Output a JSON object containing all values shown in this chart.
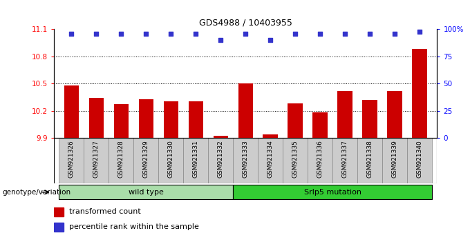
{
  "title": "GDS4988 / 10403955",
  "samples": [
    "GSM921326",
    "GSM921327",
    "GSM921328",
    "GSM921329",
    "GSM921330",
    "GSM921331",
    "GSM921332",
    "GSM921333",
    "GSM921334",
    "GSM921335",
    "GSM921336",
    "GSM921337",
    "GSM921338",
    "GSM921339",
    "GSM921340"
  ],
  "bar_values": [
    10.48,
    10.34,
    10.27,
    10.33,
    10.3,
    10.3,
    9.92,
    10.5,
    9.94,
    10.28,
    10.18,
    10.42,
    10.32,
    10.42,
    10.88
  ],
  "dot_values": [
    96,
    96,
    96,
    96,
    96,
    96,
    90,
    96,
    90,
    96,
    96,
    96,
    96,
    96,
    98
  ],
  "bar_color": "#cc0000",
  "dot_color": "#3333cc",
  "ylim_left": [
    9.9,
    11.1
  ],
  "ylim_right": [
    0,
    100
  ],
  "yticks_left": [
    9.9,
    10.2,
    10.5,
    10.8,
    11.1
  ],
  "yticks_right": [
    0,
    25,
    50,
    75,
    100
  ],
  "ytick_labels_right": [
    "0",
    "25",
    "50",
    "75",
    "100%"
  ],
  "hlines": [
    10.2,
    10.5,
    10.8
  ],
  "groups": [
    {
      "label": "wild type",
      "start": 0,
      "end": 7,
      "color": "#aaddaa"
    },
    {
      "label": "Srlp5 mutation",
      "start": 7,
      "end": 15,
      "color": "#33cc33"
    }
  ],
  "group_label": "genotype/variation",
  "legend_bar_label": "transformed count",
  "legend_dot_label": "percentile rank within the sample",
  "bar_width": 0.6,
  "xtick_bg": "#cccccc",
  "bar_baseline": 9.9
}
